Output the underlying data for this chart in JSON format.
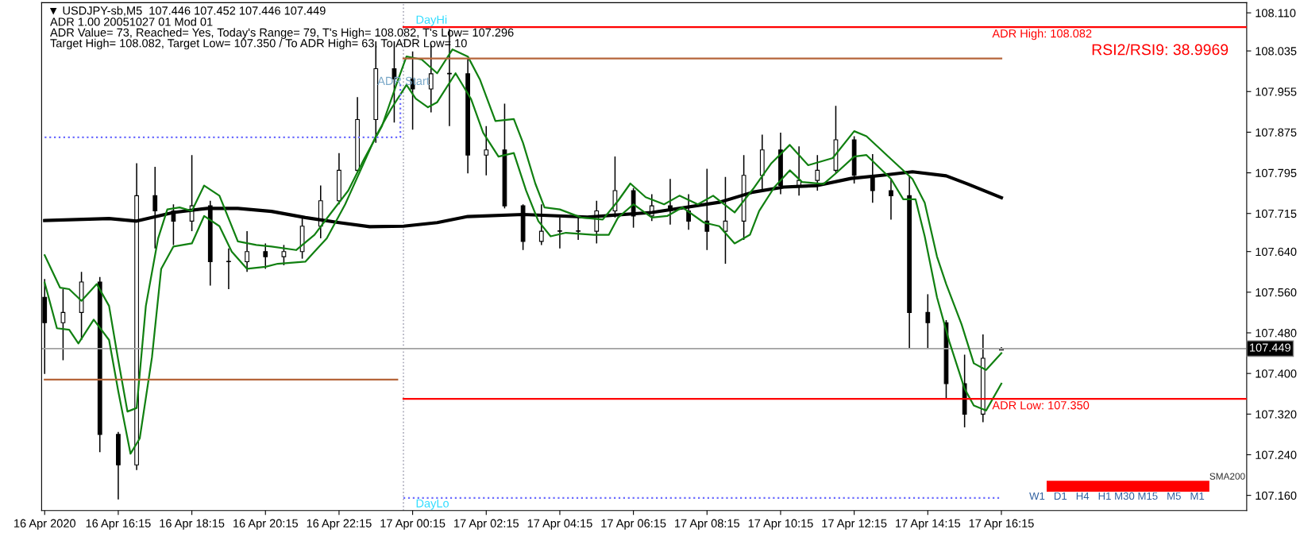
{
  "chart_data": {
    "type": "candlestick",
    "title": "▼ USDJPY-sb,M5  107.446 107.452 107.446 107.449",
    "subtitle": "ADR 1.00 20051027 01 Mod 01",
    "color": "#000000",
    "x": [
      "2020-04-16T14:15",
      "2020-04-16T14:45",
      "2020-04-16T15:15",
      "2020-04-16T15:45",
      "2020-04-16T16:15",
      "2020-04-16T16:45",
      "2020-04-16T17:15",
      "2020-04-16T17:45",
      "2020-04-16T18:15",
      "2020-04-16T18:45",
      "2020-04-16T19:15",
      "2020-04-16T19:45",
      "2020-04-16T20:15",
      "2020-04-16T20:45",
      "2020-04-16T21:15",
      "2020-04-16T21:45",
      "2020-04-16T22:15",
      "2020-04-16T22:45",
      "2020-04-16T23:15",
      "2020-04-16T23:45",
      "2020-04-17T00:15",
      "2020-04-17T00:45",
      "2020-04-17T01:15",
      "2020-04-17T01:45",
      "2020-04-17T02:15",
      "2020-04-17T02:45",
      "2020-04-17T03:15",
      "2020-04-17T03:45",
      "2020-04-17T04:15",
      "2020-04-17T04:45",
      "2020-04-17T05:15",
      "2020-04-17T05:45",
      "2020-04-17T06:15",
      "2020-04-17T06:45",
      "2020-04-17T07:15",
      "2020-04-17T07:45",
      "2020-04-17T08:15",
      "2020-04-17T08:45",
      "2020-04-17T09:15",
      "2020-04-17T09:45",
      "2020-04-17T10:15",
      "2020-04-17T10:45",
      "2020-04-17T11:15",
      "2020-04-17T11:45",
      "2020-04-17T12:15",
      "2020-04-17T12:45",
      "2020-04-17T13:15",
      "2020-04-17T13:45",
      "2020-04-17T14:15",
      "2020-04-17T14:45",
      "2020-04-17T15:15",
      "2020-04-17T15:45",
      "2020-04-17T16:15"
    ],
    "ohlc": [
      [
        107.55,
        107.586,
        107.399,
        107.5
      ],
      [
        107.5,
        107.566,
        107.426,
        107.52
      ],
      [
        107.52,
        107.6,
        107.466,
        107.58
      ],
      [
        107.58,
        107.59,
        107.245,
        107.28
      ],
      [
        107.28,
        107.285,
        107.152,
        107.22
      ],
      [
        107.22,
        107.814,
        107.21,
        107.75
      ],
      [
        107.75,
        107.807,
        107.646,
        107.72
      ],
      [
        107.72,
        107.733,
        107.653,
        107.7
      ],
      [
        107.7,
        107.83,
        107.68,
        107.73
      ],
      [
        107.73,
        107.74,
        107.573,
        107.62
      ],
      [
        107.62,
        107.646,
        107.566,
        107.62
      ],
      [
        107.62,
        107.68,
        107.6,
        107.64
      ],
      [
        107.64,
        107.656,
        107.606,
        107.63
      ],
      [
        107.63,
        107.653,
        107.613,
        107.64
      ],
      [
        107.64,
        107.707,
        107.626,
        107.69
      ],
      [
        107.69,
        107.77,
        107.666,
        107.74
      ],
      [
        107.74,
        107.834,
        107.733,
        107.8
      ],
      [
        107.8,
        107.944,
        107.795,
        107.9
      ],
      [
        107.9,
        108.054,
        107.854,
        108.0
      ],
      [
        108.0,
        108.054,
        107.894,
        107.98
      ],
      [
        107.98,
        108.034,
        107.88,
        107.96
      ],
      [
        107.96,
        108.048,
        107.914,
        107.99
      ],
      [
        107.99,
        108.078,
        107.887,
        107.99
      ],
      [
        107.99,
        108.021,
        107.794,
        107.83
      ],
      [
        107.83,
        107.887,
        107.79,
        107.84
      ],
      [
        107.84,
        107.931,
        107.725,
        107.73
      ],
      [
        107.73,
        107.733,
        107.643,
        107.66
      ],
      [
        107.66,
        107.733,
        107.653,
        107.68
      ],
      [
        107.68,
        107.707,
        107.646,
        107.68
      ],
      [
        107.68,
        107.707,
        107.663,
        107.68
      ],
      [
        107.68,
        107.74,
        107.656,
        107.72
      ],
      [
        107.72,
        107.827,
        107.707,
        107.76
      ],
      [
        107.76,
        107.765,
        107.687,
        107.71
      ],
      [
        107.71,
        107.753,
        107.7,
        107.73
      ],
      [
        107.73,
        107.783,
        107.693,
        107.72
      ],
      [
        107.72,
        107.753,
        107.683,
        107.7
      ],
      [
        107.7,
        107.803,
        107.643,
        107.68
      ],
      [
        107.68,
        107.787,
        107.616,
        107.7
      ],
      [
        107.7,
        107.83,
        107.663,
        107.79
      ],
      [
        107.79,
        107.87,
        107.76,
        107.84
      ],
      [
        107.84,
        107.874,
        107.753,
        107.77
      ],
      [
        107.77,
        107.847,
        107.75,
        107.78
      ],
      [
        107.78,
        107.83,
        107.76,
        107.8
      ],
      [
        107.8,
        107.927,
        107.795,
        107.86
      ],
      [
        107.86,
        107.867,
        107.774,
        107.79
      ],
      [
        107.79,
        107.832,
        107.736,
        107.76
      ],
      [
        107.76,
        107.783,
        107.703,
        107.75
      ],
      [
        107.75,
        107.789,
        107.45,
        107.52
      ],
      [
        107.52,
        107.556,
        107.45,
        107.5
      ],
      [
        107.5,
        107.505,
        107.35,
        107.38
      ],
      [
        107.38,
        107.437,
        107.294,
        107.32
      ],
      [
        107.32,
        107.477,
        107.304,
        107.43
      ],
      [
        107.446,
        107.452,
        107.446,
        107.449
      ]
    ],
    "series": [
      {
        "type": "line",
        "color": "#000000",
        "x": [
          "2020-04-16T14:15",
          "2020-04-16T16:00",
          "2020-04-16T16:45",
          "2020-04-16T17:45",
          "2020-04-16T18:40",
          "2020-04-16T19:30",
          "2020-04-16T20:25",
          "2020-04-16T21:20",
          "2020-04-16T22:15",
          "2020-04-16T23:05",
          "2020-04-17T00:00",
          "2020-04-17T00:55",
          "2020-04-17T01:45",
          "2020-04-17T03:15",
          "2020-04-17T05:00",
          "2020-04-17T06:45",
          "2020-04-17T08:35",
          "2020-04-17T09:30",
          "2020-04-17T10:20",
          "2020-04-17T11:15",
          "2020-04-17T12:10",
          "2020-04-17T13:00",
          "2020-04-17T13:50",
          "2020-04-17T14:45",
          "2020-04-17T15:20",
          "2020-04-17T16:15"
        ],
        "values": [
          107.701,
          107.705,
          107.7,
          107.717,
          107.725,
          107.725,
          107.719,
          107.707,
          107.697,
          107.689,
          107.69,
          107.697,
          107.709,
          107.713,
          107.708,
          107.717,
          107.737,
          107.757,
          107.767,
          107.77,
          107.784,
          107.79,
          107.797,
          107.789,
          107.773,
          107.746
        ]
      },
      {
        "type": "line",
        "color": "#118011",
        "x": [
          "2020-04-16T14:15",
          "2020-04-16T14:40",
          "2020-04-16T14:55",
          "2020-04-16T15:15",
          "2020-04-16T15:40",
          "2020-04-16T16:00",
          "2020-04-16T16:15",
          "2020-04-16T16:30",
          "2020-04-16T16:45",
          "2020-04-16T17:00",
          "2020-04-16T17:20",
          "2020-04-16T17:35",
          "2020-04-16T17:55",
          "2020-04-16T18:15",
          "2020-04-16T18:35",
          "2020-04-16T19:00",
          "2020-04-16T19:30",
          "2020-04-16T20:00",
          "2020-04-16T20:25",
          "2020-04-16T21:05",
          "2020-04-16T21:35",
          "2020-04-16T22:00",
          "2020-04-16T22:30",
          "2020-04-16T22:55",
          "2020-04-16T23:25",
          "2020-04-16T23:50",
          "2020-04-17T00:05",
          "2020-04-17T00:30",
          "2020-04-17T00:55",
          "2020-04-17T01:20",
          "2020-04-17T01:45",
          "2020-04-17T02:05",
          "2020-04-17T02:30",
          "2020-04-17T03:00",
          "2020-04-17T03:15",
          "2020-04-17T03:35",
          "2020-04-17T03:50",
          "2020-04-17T04:15",
          "2020-04-17T04:50",
          "2020-04-17T05:25",
          "2020-04-17T05:50",
          "2020-04-17T06:10",
          "2020-04-17T06:35",
          "2020-04-17T07:05",
          "2020-04-17T07:30",
          "2020-04-17T08:00",
          "2020-04-17T08:25",
          "2020-04-17T09:00",
          "2020-04-17T09:30",
          "2020-04-17T10:00",
          "2020-04-17T10:30",
          "2020-04-17T11:00",
          "2020-04-17T11:40",
          "2020-04-17T12:15",
          "2020-04-17T12:35",
          "2020-04-17T13:15",
          "2020-04-17T13:50",
          "2020-04-17T14:10",
          "2020-04-17T14:30",
          "2020-04-17T14:45",
          "2020-04-17T15:10",
          "2020-04-17T15:30",
          "2020-04-17T15:50",
          "2020-04-17T16:15"
        ],
        "values": [
          107.633,
          107.569,
          107.566,
          107.543,
          107.576,
          107.533,
          107.426,
          107.325,
          107.332,
          107.533,
          107.666,
          107.723,
          107.727,
          107.72,
          107.77,
          107.75,
          107.66,
          107.653,
          107.65,
          107.643,
          107.673,
          107.713,
          107.76,
          107.82,
          107.887,
          107.974,
          108.024,
          108.018,
          107.991,
          108.038,
          108.024,
          107.978,
          107.897,
          107.901,
          107.854,
          107.774,
          107.727,
          107.723,
          107.707,
          107.703,
          107.74,
          107.774,
          107.747,
          107.733,
          107.75,
          107.733,
          107.75,
          107.717,
          107.763,
          107.814,
          107.85,
          107.81,
          107.824,
          107.877,
          107.867,
          107.822,
          107.783,
          107.736,
          107.63,
          107.576,
          107.497,
          107.42,
          107.407,
          107.44
        ]
      },
      {
        "type": "line",
        "color": "#118011",
        "x": [
          "2020-04-16T14:15",
          "2020-04-16T14:35",
          "2020-04-16T14:55",
          "2020-04-16T15:10",
          "2020-04-16T15:35",
          "2020-04-16T16:00",
          "2020-04-16T16:15",
          "2020-04-16T16:35",
          "2020-04-16T16:50",
          "2020-04-16T17:10",
          "2020-04-16T17:25",
          "2020-04-16T17:45",
          "2020-04-16T18:15",
          "2020-04-16T18:35",
          "2020-04-16T19:00",
          "2020-04-16T19:20",
          "2020-04-16T19:45",
          "2020-04-16T20:15",
          "2020-04-16T20:35",
          "2020-04-16T21:20",
          "2020-04-16T21:35",
          "2020-04-16T21:55",
          "2020-04-16T22:25",
          "2020-04-16T22:50",
          "2020-04-16T23:15",
          "2020-04-16T23:40",
          "2020-04-17T00:05",
          "2020-04-17T00:20",
          "2020-04-17T00:40",
          "2020-04-17T00:55",
          "2020-04-17T01:25",
          "2020-04-17T01:50",
          "2020-04-17T02:10",
          "2020-04-17T02:35",
          "2020-04-17T03:00",
          "2020-04-17T03:20",
          "2020-04-17T03:40",
          "2020-04-17T04:00",
          "2020-04-17T04:25",
          "2020-04-17T05:10",
          "2020-04-17T05:35",
          "2020-04-17T05:50",
          "2020-04-17T06:15",
          "2020-04-17T06:45",
          "2020-04-17T07:10",
          "2020-04-17T07:35",
          "2020-04-17T08:10",
          "2020-04-17T08:35",
          "2020-04-17T09:00",
          "2020-04-17T09:25",
          "2020-04-17T09:40",
          "2020-04-17T10:05",
          "2020-04-17T10:30",
          "2020-04-17T10:50",
          "2020-04-17T11:25",
          "2020-04-17T11:45",
          "2020-04-17T12:15",
          "2020-04-17T12:35",
          "2020-04-17T13:15",
          "2020-04-17T13:35",
          "2020-04-17T13:55",
          "2020-04-17T14:10",
          "2020-04-17T14:30",
          "2020-04-17T14:50",
          "2020-04-17T15:15",
          "2020-04-17T15:30",
          "2020-04-17T15:50",
          "2020-04-17T16:15"
        ],
        "values": [
          107.579,
          107.489,
          107.486,
          107.459,
          107.506,
          107.466,
          107.365,
          107.242,
          107.272,
          107.432,
          107.606,
          107.65,
          107.656,
          107.71,
          107.69,
          107.64,
          107.606,
          107.61,
          107.616,
          107.62,
          107.64,
          107.666,
          107.733,
          107.8,
          107.867,
          107.921,
          107.968,
          107.941,
          107.924,
          107.934,
          107.991,
          107.941,
          107.874,
          107.827,
          107.834,
          107.76,
          107.7,
          107.67,
          107.677,
          107.673,
          107.673,
          107.707,
          107.733,
          107.707,
          107.71,
          107.727,
          107.697,
          107.69,
          107.656,
          107.673,
          107.72,
          107.767,
          107.8,
          107.777,
          107.773,
          107.794,
          107.827,
          107.83,
          107.783,
          107.743,
          107.743,
          107.67,
          107.55,
          107.463,
          107.37,
          107.337,
          107.327,
          107.38
        ]
      },
      {
        "type": "line",
        "color": "#ff0000",
        "x": [
          "2020-04-17T00:00",
          "2020-04-17T22:55"
        ],
        "values": [
          108.082,
          108.082
        ]
      },
      {
        "type": "line",
        "color": "#ff0000",
        "x": [
          "2020-04-17T00:00",
          "2020-04-17T22:55"
        ],
        "values": [
          107.35,
          107.35
        ]
      },
      {
        "type": "line",
        "color": "#b5653a",
        "x": [
          "2020-04-17T00:00",
          "2020-04-17T16:15"
        ],
        "values": [
          108.02,
          108.02
        ]
      },
      {
        "type": "line",
        "color": "#b5653a",
        "x": [
          "2020-04-16T14:15",
          "2020-04-16T23:50"
        ],
        "values": [
          107.388,
          107.388
        ]
      },
      {
        "type": "line",
        "color": "#6b6bff",
        "line_style": "dotted",
        "x": [
          "2020-04-16T14:15",
          "2020-04-16T23:55",
          "2020-04-16T23:55"
        ],
        "values": [
          107.865,
          107.865,
          107.974
        ]
      },
      {
        "type": "line",
        "color": "#6b6bff",
        "line_style": "dotted",
        "x": [
          "2020-04-17T00:00",
          "2020-04-17T16:15"
        ],
        "values": [
          107.155,
          107.155
        ]
      }
    ],
    "ref_lines": [
      {
        "axis": "x",
        "value": "2020-04-17T00:00",
        "color": "#a8a8b8",
        "line_style": "dotted"
      },
      {
        "axis": "y",
        "value": 107.449,
        "label": "107.449",
        "color": "#a0a0a0"
      }
    ],
    "annotations": [
      "ADR Value= 73, Reached= Yes, Today's Range= 79, T's High= 108.082, T's Low= 107.296",
      "Target High= 108.082, Target Low= 107.350 / To ADR High= 63, To ADR Low= 10",
      "RSI2/RSI9: 38.9969",
      "SMA200",
      "W1   D1   H4   H1 M30 M15   M5   M1",
      {
        "text": "ADR High: 108.082",
        "x": "2020-04-17T16:00",
        "y": 108.082
      },
      {
        "text": "ADR Low: 107.350",
        "x": "2020-04-17T16:00",
        "y": 107.35
      },
      {
        "text": "DayHi",
        "x": "2020-04-17T00:20",
        "y": 108.082
      },
      {
        "text": "DayLo",
        "x": "2020-04-17T00:20",
        "y": 107.155
      },
      {
        "text": "ADR Start",
        "x": "2020-04-17T00:00",
        "y": 107.974
      }
    ],
    "xlim": [
      "2020-04-16T14:10",
      "2020-04-17T22:55"
    ],
    "xticks": [
      {
        "value": "2020-04-16T14:15",
        "label": "16 Apr 2020"
      },
      {
        "value": "2020-04-16T16:15",
        "label": "16 Apr 16:15"
      },
      {
        "value": "2020-04-16T18:15",
        "label": "16 Apr 18:15"
      },
      {
        "value": "2020-04-16T20:15",
        "label": "16 Apr 20:15"
      },
      {
        "value": "2020-04-16T22:15",
        "label": "16 Apr 22:15"
      },
      {
        "value": "2020-04-17T00:15",
        "label": "17 Apr 00:15"
      },
      {
        "value": "2020-04-17T02:15",
        "label": "17 Apr 02:15"
      },
      {
        "value": "2020-04-17T04:15",
        "label": "17 Apr 04:15"
      },
      {
        "value": "2020-04-17T06:15",
        "label": "17 Apr 06:15"
      },
      {
        "value": "2020-04-17T08:15",
        "label": "17 Apr 08:15"
      },
      {
        "value": "2020-04-17T10:15",
        "label": "17 Apr 10:15"
      },
      {
        "value": "2020-04-17T12:15",
        "label": "17 Apr 12:15"
      },
      {
        "value": "2020-04-17T14:15",
        "label": "17 Apr 14:15"
      },
      {
        "value": "2020-04-17T16:15",
        "label": "17 Apr 16:15"
      }
    ],
    "ylim": [
      107.13,
      108.13
    ],
    "yticks": [
      {
        "value": 108.11,
        "label": "108.110"
      },
      {
        "value": 108.035,
        "label": "108.035"
      },
      {
        "value": 107.955,
        "label": "107.955"
      },
      {
        "value": 107.875,
        "label": "107.875"
      },
      {
        "value": 107.795,
        "label": "107.795"
      },
      {
        "value": 107.715,
        "label": "107.715"
      },
      {
        "value": 107.64,
        "label": "107.640"
      },
      {
        "value": 107.56,
        "label": "107.560"
      },
      {
        "value": 107.48,
        "label": "107.480"
      },
      {
        "value": 107.4,
        "label": "107.400"
      },
      {
        "value": 107.32,
        "label": "107.320"
      },
      {
        "value": 107.24,
        "label": "107.240"
      },
      {
        "value": 107.16,
        "label": "107.160"
      }
    ]
  }
}
